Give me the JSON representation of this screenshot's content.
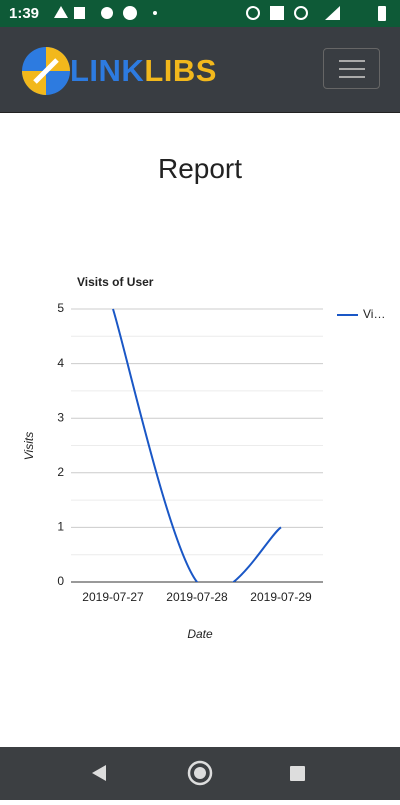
{
  "status_bar": {
    "time": "1:39"
  },
  "header": {
    "logo_left": "LINK",
    "logo_right": "LIBS"
  },
  "page": {
    "title": "Report"
  },
  "chart_data": {
    "type": "line",
    "title": "Visits of User",
    "x_label": "Date",
    "y_label": "Visits",
    "categories": [
      "2019-07-27",
      "2019-07-28",
      "2019-07-29"
    ],
    "series": [
      {
        "name": "Vi…",
        "color": "#1a57c6",
        "values": [
          5,
          0,
          1
        ]
      }
    ],
    "ylim": [
      0,
      5
    ],
    "yticks": [
      0,
      1,
      2,
      3,
      4,
      5
    ],
    "grid": true,
    "smooth": true,
    "legend": "right"
  }
}
